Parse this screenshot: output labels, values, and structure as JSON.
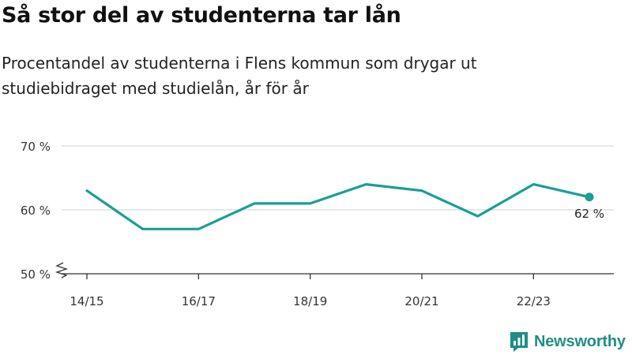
{
  "header": {
    "title": "Så stor del av studenterna tar lån",
    "subtitle": "Procentandel av studenterna i Flens kommun som drygar ut studiebidraget med studielån, år för år"
  },
  "brand": {
    "name": "Newsworthy",
    "logo_icon": "bar-chart-logo-icon"
  },
  "colors": {
    "line": "#1a9e96",
    "grid": "#d9d9d9",
    "axis": "#333333"
  },
  "chart_data": {
    "type": "line",
    "title": "Så stor del av studenterna tar lån",
    "x": [
      "14/15",
      "15/16",
      "16/17",
      "17/18",
      "18/19",
      "19/20",
      "20/21",
      "21/22",
      "22/23",
      "23/24"
    ],
    "x_tick_labels": [
      "14/15",
      "16/17",
      "18/19",
      "20/21",
      "22/23"
    ],
    "series": [
      {
        "values": [
          63,
          57,
          57,
          61,
          61,
          64,
          63,
          59,
          64,
          62
        ]
      }
    ],
    "ylim": [
      50,
      70
    ],
    "y_ticks": [
      50,
      60,
      70
    ],
    "y_tick_labels": [
      "50 %",
      "60 %",
      "70 %"
    ],
    "y_axis_break": true,
    "grid": true,
    "end_label": "62 %"
  }
}
